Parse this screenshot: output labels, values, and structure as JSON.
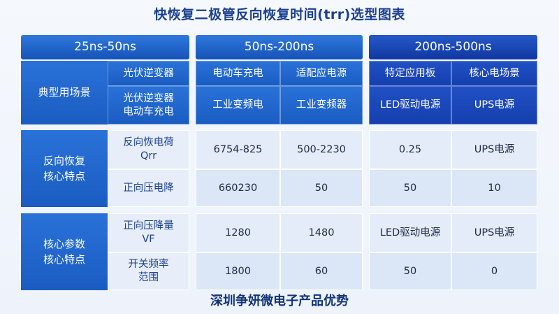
{
  "title": "快恢复二极管反向恢复时间(trr)选型图表",
  "footer": "深圳争妍微电子产品优势",
  "headers": [
    "25ns-50ns",
    "50ns-200ns",
    "200ns-500ns"
  ],
  "section1": {
    "label": "典型用场景",
    "r1": [
      "光伏逆变器",
      "电动车充电",
      "适配应电源",
      "特定应用板",
      "核心电场景"
    ],
    "r2": [
      "光伏逆变器\n电动车充电",
      "工业变频电",
      "工业变频器",
      "LED驱动电源",
      "UPS电源"
    ]
  },
  "section2": {
    "label": "反向恢复\n核心特点",
    "r1": [
      "反向恢电荷\nQrr",
      "6754-825",
      "500-2230",
      "0.25",
      "UPS电源"
    ],
    "r2": [
      "正向压电降",
      "660230",
      "50",
      "50",
      "10"
    ]
  },
  "section3": {
    "label": "核心参数\n核心特点",
    "r1": [
      "正向压降量\nVF",
      "1280",
      "1480",
      "LED驱动电源",
      "UPS电源"
    ],
    "r2": [
      "开关频率\n范围",
      "1800",
      "60",
      "50",
      "0"
    ]
  }
}
